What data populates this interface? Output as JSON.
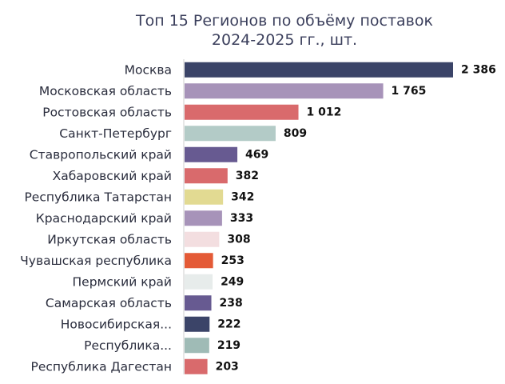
{
  "chart_data": {
    "type": "bar",
    "orientation": "horizontal",
    "title_line1": "Топ 15 Регионов по объёму поставок",
    "title_line2": "2024-2025 гг., шт.",
    "categories": [
      "Москва",
      "Московская область",
      "Ростовская область",
      "Санкт-Петербург",
      "Ставропольский край",
      "Хабаровский край",
      "Республика Татарстан",
      "Краснодарский край",
      "Иркутская область",
      "Чувашская республика",
      "Пермский край",
      "Самарская область",
      "Новосибирская...",
      "Республика...",
      "Республика Дагестан"
    ],
    "values": [
      2386,
      1765,
      1012,
      809,
      469,
      382,
      342,
      333,
      308,
      253,
      249,
      238,
      222,
      219,
      203
    ],
    "value_labels": [
      "2 386",
      "1 765",
      "1 012",
      "809",
      "469",
      "382",
      "342",
      "333",
      "308",
      "253",
      "249",
      "238",
      "222",
      "219",
      "203"
    ],
    "colors": [
      "#3b4468",
      "#a793b9",
      "#d96a6c",
      "#b3cbc7",
      "#675a91",
      "#d96a6c",
      "#e2da92",
      "#a793b9",
      "#f3dee0",
      "#e45a36",
      "#e7eceb",
      "#675a91",
      "#3b4468",
      "#9fbbb6",
      "#d96a6c"
    ],
    "xlim": [
      0,
      2386
    ],
    "grid": false,
    "legend": "none"
  }
}
